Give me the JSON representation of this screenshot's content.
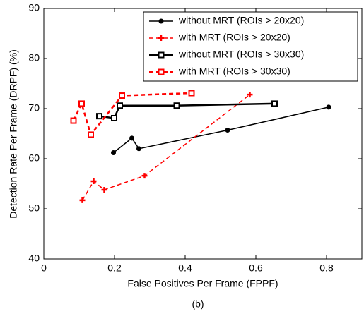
{
  "chart_data": {
    "type": "line",
    "xlabel": "False Positives Per Frame (FPPF)",
    "ylabel": "Detection Rate Per Frame (DRPF) (%)",
    "caption": "(b)",
    "xlim": [
      0,
      0.9
    ],
    "ylim": [
      40,
      90
    ],
    "xticks": [
      0,
      0.2,
      0.4,
      0.6,
      0.8
    ],
    "yticks": [
      40,
      50,
      60,
      70,
      80,
      90
    ],
    "legend": "upper right",
    "series": [
      {
        "name": "without MRT (ROIs > 20x20)",
        "color": "#000000",
        "marker": "dot",
        "dash": false,
        "width": 1.5,
        "x": [
          0.197,
          0.249,
          0.269,
          0.52,
          0.806
        ],
        "values": [
          61.2,
          64.1,
          62.0,
          65.7,
          70.3
        ]
      },
      {
        "name": "with MRT (ROIs > 20x20)",
        "color": "#ff0000",
        "marker": "plus",
        "dash": true,
        "width": 1.5,
        "x": [
          0.109,
          0.141,
          0.171,
          0.285,
          0.583
        ],
        "values": [
          51.7,
          55.5,
          53.8,
          56.6,
          72.8
        ]
      },
      {
        "name": "without MRT (ROIs > 30x30)",
        "color": "#000000",
        "marker": "square",
        "dash": false,
        "width": 2.5,
        "x": [
          0.157,
          0.199,
          0.215,
          0.376,
          0.653
        ],
        "values": [
          68.5,
          68.1,
          70.6,
          70.6,
          71.0
        ]
      },
      {
        "name": "with MRT (ROIs > 30x30)",
        "color": "#ff0000",
        "marker": "square",
        "dash": true,
        "width": 2.5,
        "x": [
          0.084,
          0.107,
          0.133,
          0.221,
          0.418
        ],
        "values": [
          67.6,
          71.0,
          64.8,
          72.6,
          73.1
        ]
      }
    ]
  }
}
